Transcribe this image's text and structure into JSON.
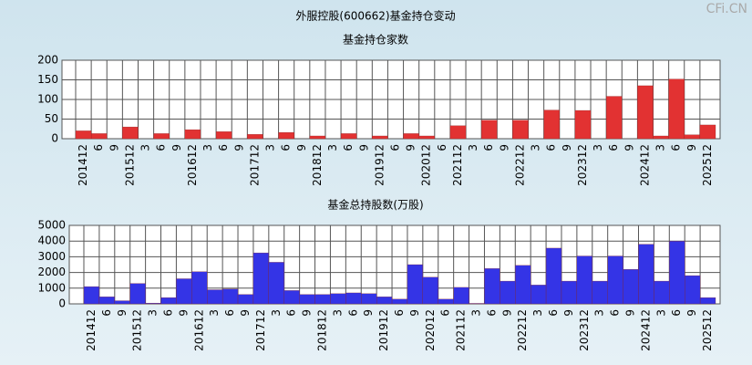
{
  "title": "外服控股(600662)基金持仓变动",
  "watermark": "CFi.CN",
  "chart_data": [
    {
      "type": "bar",
      "title": "基金持仓家数",
      "color": "#e23232",
      "grid": true,
      "ylim": [
        0,
        200
      ],
      "yticks": [
        0,
        50,
        100,
        150,
        200
      ],
      "categories": [
        "201412",
        "6",
        "9",
        "201512",
        "3",
        "6",
        "9",
        "201612",
        "3",
        "6",
        "9",
        "201712",
        "3",
        "6",
        "9",
        "201812",
        "3",
        "6",
        "9",
        "201912",
        "6",
        "9",
        "202012",
        "6",
        "202112",
        "3",
        "6",
        "9",
        "202212",
        "3",
        "6",
        "9",
        "202312",
        "3",
        "6",
        "9",
        "202412",
        "3",
        "6",
        "9",
        "202512"
      ],
      "values": [
        20,
        13,
        0,
        30,
        0,
        13,
        0,
        23,
        0,
        18,
        0,
        11,
        0,
        16,
        0,
        7,
        0,
        13,
        0,
        7,
        0,
        13,
        7,
        0,
        33,
        0,
        47,
        0,
        47,
        0,
        73,
        0,
        72,
        0,
        108,
        0,
        135,
        7,
        152,
        10,
        35
      ]
    },
    {
      "type": "bar",
      "title": "基金总持股数(万股)",
      "color": "#3434e6",
      "grid": true,
      "ylim": [
        0,
        5000
      ],
      "yticks": [
        0,
        1000,
        2000,
        3000,
        4000,
        5000
      ],
      "categories": [
        "201412",
        "6",
        "9",
        "201512",
        "3",
        "6",
        "9",
        "201612",
        "3",
        "6",
        "9",
        "201712",
        "3",
        "6",
        "9",
        "201812",
        "3",
        "6",
        "9",
        "201912",
        "6",
        "9",
        "202012",
        "6",
        "202112",
        "3",
        "6",
        "9",
        "202212",
        "3",
        "6",
        "9",
        "202312",
        "3",
        "6",
        "9",
        "202412",
        "3",
        "6",
        "9",
        "202512"
      ],
      "values": [
        1100,
        450,
        200,
        1300,
        50,
        400,
        1600,
        2050,
        900,
        950,
        600,
        3250,
        2650,
        850,
        600,
        600,
        650,
        700,
        650,
        450,
        300,
        2500,
        1700,
        300,
        1050,
        30,
        2250,
        1450,
        2450,
        1200,
        3550,
        1450,
        3050,
        1450,
        3050,
        2200,
        3800,
        1450,
        4000,
        1800,
        400
      ]
    }
  ]
}
